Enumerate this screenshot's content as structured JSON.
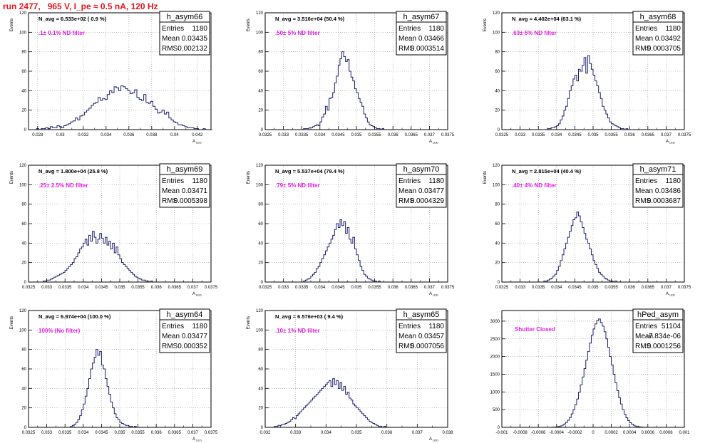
{
  "title": "run 2477,   965 V, I_pe ≈ 0.5 nA, 120 Hz",
  "colors": {
    "title": "#e8141c",
    "annotation": "#e020e0",
    "histogram": "#1a1f6e",
    "grid": "#9a9a9a",
    "frame": "#000000"
  },
  "chart_data": [
    {
      "type": "bar",
      "name": "h_asym66",
      "ylabel": "Events",
      "xlabel": "A",
      "xlabel_sub": "LED",
      "xlim": [
        0.0272,
        0.0432
      ],
      "ylim": [
        0,
        120
      ],
      "xticks": [
        0.028,
        0.03,
        0.032,
        0.034,
        0.036,
        0.038,
        0.04,
        0.042
      ],
      "xtick_labels": [
        "0.028",
        "0.03",
        "0.032",
        "0.034",
        "0.036",
        "0.038",
        "0.04",
        "0.042"
      ],
      "yticks": [
        0,
        20,
        40,
        60,
        80,
        100,
        120
      ],
      "header": "N_avg = 6.533e+02 ( 0.9 %)",
      "annotation": ".1± 0.1% ND filter",
      "stats": {
        "entries": "1180",
        "mean": "0.03435",
        "rms": "0.002132"
      },
      "bins": {
        "x0": 0.0279,
        "width": 0.0002,
        "values": [
          1,
          0,
          1,
          1,
          2,
          1,
          3,
          2,
          2,
          4,
          3,
          2,
          4,
          5,
          6,
          8,
          9,
          12,
          10,
          14,
          15,
          18,
          20,
          22,
          25,
          27,
          28,
          33,
          30,
          32,
          31,
          36,
          40,
          38,
          44,
          43,
          40,
          45,
          44,
          42,
          40,
          37,
          38,
          41,
          33,
          31,
          30,
          36,
          28,
          27,
          29,
          24,
          21,
          17,
          18,
          20,
          16,
          18,
          12,
          10,
          8,
          7,
          5,
          5,
          4,
          3,
          2,
          2,
          2,
          1,
          1,
          0,
          0,
          1,
          0,
          0,
          0
        ]
      }
    },
    {
      "type": "bar",
      "name": "h_asym67",
      "ylabel": "Events",
      "xlabel": "A",
      "xlabel_sub": "LED",
      "xlim": [
        0.0325,
        0.0375
      ],
      "ylim": [
        0,
        120
      ],
      "xticks": [
        0.0325,
        0.033,
        0.0335,
        0.034,
        0.0345,
        0.035,
        0.0355,
        0.036,
        0.0365,
        0.037,
        0.0375
      ],
      "xtick_labels": [
        "0.0325",
        "0.033",
        "0.0335",
        "0.034",
        "0.0345",
        "0.035",
        "0.0355",
        "0.036",
        "0.0365",
        "0.037",
        "0.0375"
      ],
      "yticks": [
        0,
        20,
        40,
        60,
        80,
        100,
        120
      ],
      "header": "N_avg = 3.516e+04 (50.4 %)",
      "annotation": ".50± 5% ND filter",
      "stats": {
        "entries": "1180",
        "mean": "0.03466",
        "rms": "0.0003514"
      },
      "bins": {
        "x0": 0.03355,
        "width": 5e-05,
        "values": [
          1,
          1,
          1,
          2,
          2,
          3,
          4,
          5,
          4,
          8,
          13,
          16,
          24,
          20,
          32,
          33,
          38,
          48,
          55,
          66,
          73,
          80,
          75,
          70,
          72,
          60,
          54,
          50,
          42,
          38,
          32,
          28,
          24,
          16,
          12,
          8,
          5,
          4,
          3,
          2,
          1,
          1,
          0,
          1
        ]
      }
    },
    {
      "type": "bar",
      "name": "h_asym68",
      "ylabel": "Events",
      "xlabel": "A",
      "xlabel_sub": "LED",
      "xlim": [
        0.0325,
        0.0375
      ],
      "ylim": [
        0,
        120
      ],
      "xticks": [
        0.0325,
        0.033,
        0.0335,
        0.034,
        0.0345,
        0.035,
        0.0355,
        0.036,
        0.0365,
        0.037,
        0.0375
      ],
      "xtick_labels": [
        "0.0325",
        "0.033",
        "0.0335",
        "0.034",
        "0.0345",
        "0.035",
        "0.0355",
        "0.036",
        "0.0365",
        "0.037",
        "0.0375"
      ],
      "yticks": [
        0,
        20,
        40,
        60,
        80,
        100,
        120
      ],
      "header": "N_avg = 4.402e+04 (63.1 %)",
      "annotation": ".63± 5% ND filter",
      "stats": {
        "entries": "1180",
        "mean": "0.03492",
        "rms": "0.0003705"
      },
      "bins": {
        "x0": 0.03375,
        "width": 5e-05,
        "values": [
          1,
          1,
          2,
          2,
          3,
          4,
          6,
          10,
          14,
          20,
          24,
          32,
          40,
          45,
          52,
          56,
          50,
          62,
          60,
          66,
          74,
          58,
          76,
          68,
          62,
          56,
          50,
          45,
          38,
          32,
          24,
          20,
          16,
          12,
          8,
          6,
          5,
          4,
          3,
          2,
          1,
          1,
          0,
          1
        ]
      }
    },
    {
      "type": "bar",
      "name": "h_asym69",
      "ylabel": "Events",
      "xlabel": "A",
      "xlabel_sub": "LED",
      "xlim": [
        0.0325,
        0.0375
      ],
      "ylim": [
        0,
        120
      ],
      "xticks": [
        0.0325,
        0.033,
        0.0335,
        0.034,
        0.0345,
        0.035,
        0.0355,
        0.036,
        0.0365,
        0.037,
        0.0375
      ],
      "xtick_labels": [
        "0.0325",
        "0.033",
        "0.0335",
        "0.034",
        "0.0345",
        "0.035",
        "0.0355",
        "0.036",
        "0.0365",
        "0.037",
        "0.0375"
      ],
      "yticks": [
        0,
        20,
        40,
        60,
        80,
        100,
        120
      ],
      "header": "N_avg = 1.800e+04 (25.8 %)",
      "annotation": ".25± 2.5% ND filter",
      "stats": {
        "entries": "1180",
        "mean": "0.03471",
        "rms": "0.0005398"
      },
      "bins": {
        "x0": 0.0329,
        "width": 5e-05,
        "values": [
          1,
          1,
          2,
          2,
          3,
          4,
          5,
          6,
          7,
          8,
          9,
          10,
          12,
          14,
          16,
          18,
          20,
          24,
          26,
          30,
          34,
          36,
          40,
          44,
          38,
          48,
          42,
          52,
          46,
          40,
          44,
          50,
          45,
          40,
          46,
          38,
          42,
          34,
          40,
          30,
          36,
          28,
          24,
          20,
          18,
          16,
          14,
          12,
          10,
          8,
          6,
          5,
          4,
          3,
          2,
          2,
          1,
          1,
          0,
          1
        ]
      }
    },
    {
      "type": "bar",
      "name": "h_asym70",
      "ylabel": "Events",
      "xlabel": "A",
      "xlabel_sub": "LED",
      "xlim": [
        0.0325,
        0.0375
      ],
      "ylim": [
        0,
        120
      ],
      "xticks": [
        0.0325,
        0.033,
        0.0335,
        0.034,
        0.0345,
        0.035,
        0.0355,
        0.036,
        0.0365,
        0.037,
        0.0375
      ],
      "xtick_labels": [
        "0.0325",
        "0.033",
        "0.0335",
        "0.034",
        "0.0345",
        "0.035",
        "0.0355",
        "0.036",
        "0.0365",
        "0.037",
        "0.0375"
      ],
      "yticks": [
        0,
        20,
        40,
        60,
        80,
        100,
        120
      ],
      "header": "N_avg = 5.537e+04 (79.4 %)",
      "annotation": ".79± 5% ND filter",
      "stats": {
        "entries": "1180",
        "mean": "0.03477",
        "rms": "0.0004329"
      },
      "bins": {
        "x0": 0.03355,
        "width": 5e-05,
        "values": [
          1,
          2,
          3,
          4,
          6,
          8,
          10,
          14,
          16,
          20,
          24,
          28,
          32,
          36,
          40,
          44,
          48,
          54,
          60,
          56,
          64,
          58,
          62,
          50,
          56,
          44,
          40,
          46,
          34,
          28,
          22,
          16,
          12,
          8,
          6,
          4,
          3,
          2,
          1,
          1,
          0,
          1
        ]
      }
    },
    {
      "type": "bar",
      "name": "h_asym71",
      "ylabel": "Events",
      "xlabel": "A",
      "xlabel_sub": "LED",
      "xlim": [
        0.0325,
        0.0375
      ],
      "ylim": [
        0,
        120
      ],
      "xticks": [
        0.0325,
        0.033,
        0.0335,
        0.034,
        0.0345,
        0.035,
        0.0355,
        0.036,
        0.0365,
        0.037,
        0.0375
      ],
      "xtick_labels": [
        "0.0325",
        "0.033",
        "0.0335",
        "0.034",
        "0.0345",
        "0.035",
        "0.0355",
        "0.036",
        "0.0365",
        "0.037",
        "0.0375"
      ],
      "yticks": [
        0,
        20,
        40,
        60,
        80,
        100,
        120
      ],
      "header": "N_avg = 2.815e+04 (40.4 %)",
      "annotation": ".40± 4% ND filter",
      "stats": {
        "entries": "1180",
        "mean": "0.03486",
        "rms": "0.0003687"
      },
      "bins": {
        "x0": 0.03365,
        "width": 5e-05,
        "values": [
          1,
          1,
          2,
          3,
          4,
          6,
          8,
          12,
          16,
          22,
          28,
          34,
          40,
          46,
          52,
          58,
          64,
          66,
          72,
          68,
          62,
          56,
          50,
          44,
          40,
          34,
          28,
          22,
          18,
          14,
          10,
          8,
          6,
          4,
          3,
          2,
          1,
          1,
          0,
          1
        ]
      }
    },
    {
      "type": "bar",
      "name": "h_asym64",
      "ylabel": "Events",
      "xlabel": "A",
      "xlabel_sub": "LED",
      "xlim": [
        0.0325,
        0.0375
      ],
      "ylim": [
        0,
        120
      ],
      "xticks": [
        0.0325,
        0.033,
        0.0335,
        0.034,
        0.0345,
        0.035,
        0.0355,
        0.036,
        0.0365,
        0.037,
        0.0375
      ],
      "xtick_labels": [
        "0.0325",
        "0.033",
        "0.0335",
        "0.034",
        "0.0345",
        "0.035",
        "0.0355",
        "0.036",
        "0.0365",
        "0.037",
        "0.0375"
      ],
      "yticks": [
        0,
        20,
        40,
        60,
        80,
        100,
        120
      ],
      "header": "N_avg = 6.974e+04 (100.0 %)",
      "annotation": "100% (No filter)",
      "stats": {
        "entries": "1180",
        "mean": "0.03477",
        "rms": "0.000352"
      },
      "bins": {
        "x0": 0.03365,
        "width": 5e-05,
        "values": [
          1,
          2,
          3,
          5,
          8,
          12,
          18,
          24,
          32,
          40,
          50,
          60,
          66,
          72,
          80,
          74,
          78,
          64,
          60,
          50,
          42,
          34,
          26,
          20,
          14,
          10,
          8,
          5,
          4,
          3,
          2,
          2,
          1,
          1,
          0,
          1
        ]
      }
    },
    {
      "type": "bar",
      "name": "h_asym65",
      "ylabel": "Events",
      "xlabel": "A",
      "xlabel_sub": "LED",
      "xlim": [
        0.032,
        0.038
      ],
      "ylim": [
        0,
        120
      ],
      "xticks": [
        0.032,
        0.033,
        0.034,
        0.035,
        0.036,
        0.037,
        0.038
      ],
      "xtick_labels": [
        "0.032",
        "0.033",
        "0.034",
        "0.035",
        "0.036",
        "0.037",
        "0.038"
      ],
      "yticks": [
        0,
        20,
        40,
        60,
        80,
        100,
        120
      ],
      "header": "N_avg = 6.576e+03 ( 9.4 %)",
      "annotation": ".10± 1% ND filter",
      "stats": {
        "entries": "1180",
        "mean": "0.03457",
        "rms": "0.0007056"
      },
      "bins": {
        "x0": 0.0323,
        "width": 6e-05,
        "values": [
          1,
          1,
          2,
          2,
          3,
          3,
          4,
          5,
          6,
          8,
          10,
          9,
          12,
          14,
          16,
          18,
          20,
          22,
          24,
          26,
          28,
          30,
          32,
          34,
          36,
          38,
          40,
          42,
          44,
          46,
          48,
          42,
          50,
          44,
          48,
          40,
          46,
          38,
          42,
          34,
          36,
          30,
          28,
          24,
          22,
          20,
          18,
          16,
          14,
          12,
          10,
          8,
          6,
          5,
          4,
          3,
          2,
          1,
          1,
          0,
          1
        ]
      }
    },
    {
      "type": "bar",
      "name": "hPed_asym",
      "ylabel": "",
      "xlabel": "",
      "xlabel_sub": "",
      "xlim": [
        -0.001,
        0.001
      ],
      "ylim": [
        0,
        3300
      ],
      "xticks": [
        -0.001,
        -0.0008,
        -0.0006,
        -0.0004,
        -0.0002,
        0,
        0.0002,
        0.0004,
        0.0006,
        0.0008,
        0.001
      ],
      "xtick_labels": [
        "-0.001",
        "-0.0008",
        "-0.0006",
        "-0.0004",
        "-0.0002",
        "0",
        "0.0002",
        "0.0004",
        "0.0006",
        "0.0008",
        "0.001"
      ],
      "yticks": [
        0,
        500,
        1000,
        1500,
        2000,
        2500,
        3000
      ],
      "header": "",
      "annotation": "Shutter Closed",
      "stats": {
        "entries": "51104",
        "mean": "-7.834e-06",
        "rms": "0.0001256"
      },
      "bins": {
        "x0": -0.00046,
        "width": 2e-05,
        "values": [
          2,
          4,
          8,
          14,
          25,
          40,
          62,
          95,
          140,
          200,
          280,
          380,
          500,
          640,
          800,
          990,
          1200,
          1420,
          1660,
          1900,
          2140,
          2380,
          2600,
          2780,
          2920,
          3020,
          3060,
          2960,
          2860,
          2700,
          2500,
          2260,
          2000,
          1760,
          1500,
          1260,
          1040,
          840,
          660,
          500,
          370,
          270,
          190,
          130,
          88,
          58,
          36,
          22,
          13,
          7,
          4,
          2
        ]
      }
    }
  ]
}
